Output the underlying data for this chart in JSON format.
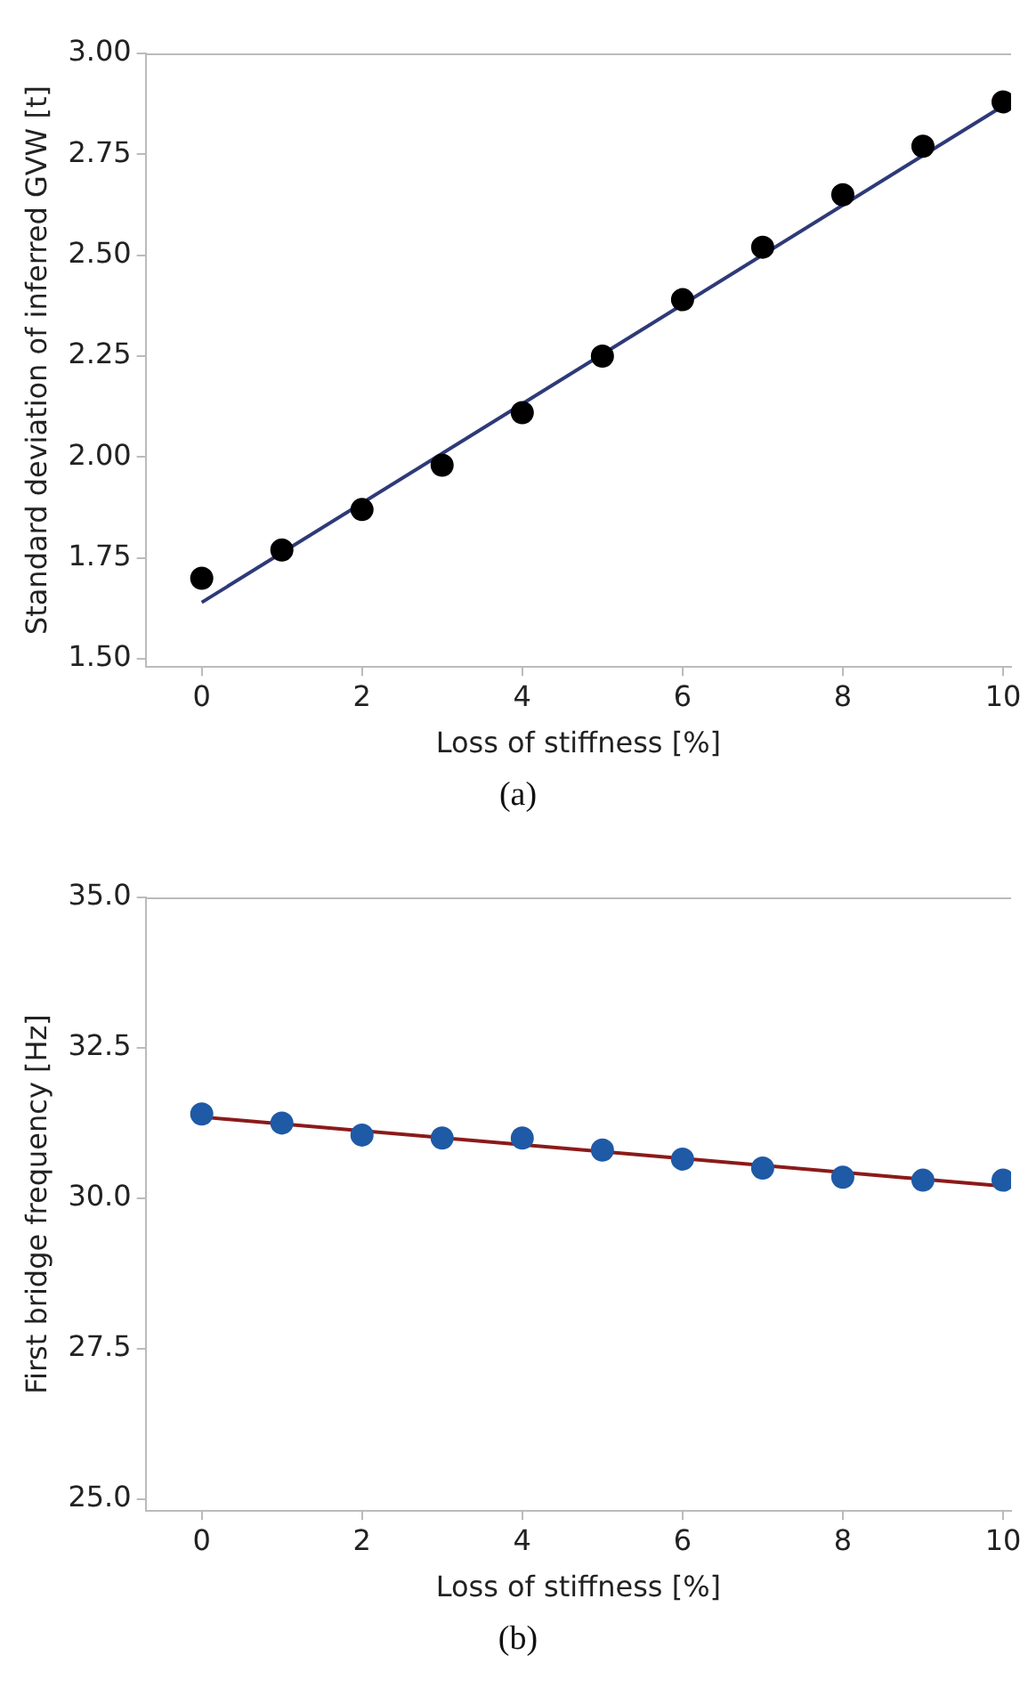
{
  "chart_data": [
    {
      "type": "scatter",
      "xlabel": "Loss of stiffness [%]",
      "ylabel": "Standard deviation of inferred GVW [t]",
      "annotations": [
        "(a)"
      ],
      "xlim": [
        -0.7,
        10.1
      ],
      "xticks": [
        0,
        2,
        4,
        6,
        8,
        10
      ],
      "ylim": [
        1.48,
        3.0
      ],
      "yticks": [
        {
          "value": 1.5,
          "label": "1.50"
        },
        {
          "value": 1.75,
          "label": "1.75"
        },
        {
          "value": 2.0,
          "label": "2.00"
        },
        {
          "value": 2.25,
          "label": "2.25"
        },
        {
          "value": 2.5,
          "label": "2.50"
        },
        {
          "value": 2.75,
          "label": "2.75"
        },
        {
          "value": 3.0,
          "label": "3.00"
        }
      ],
      "grid": false,
      "series": [
        {
          "type": "scatter",
          "marker": "circle",
          "color": "#000000",
          "x": [
            0,
            1,
            2,
            3,
            4,
            5,
            6,
            7,
            8,
            9,
            10
          ],
          "values": [
            1.7,
            1.77,
            1.87,
            1.98,
            2.11,
            2.25,
            2.39,
            2.52,
            2.65,
            2.77,
            2.88
          ]
        },
        {
          "type": "line",
          "marker": "none",
          "color": "#2e3a78",
          "x": [
            0,
            10
          ],
          "values": [
            1.64,
            2.87
          ]
        }
      ]
    },
    {
      "type": "scatter",
      "xlabel": "Loss of stiffness [%]",
      "ylabel": "First bridge frequency [Hz]",
      "annotations": [
        "(b)"
      ],
      "xlim": [
        -0.7,
        10.1
      ],
      "xticks": [
        0,
        2,
        4,
        6,
        8,
        10
      ],
      "ylim": [
        24.8,
        35.0
      ],
      "yticks": [
        {
          "value": 25,
          "label": "25.0"
        },
        {
          "value": 27.5,
          "label": "27.5"
        },
        {
          "value": 30,
          "label": "30.0"
        },
        {
          "value": 32.5,
          "label": "32.5"
        },
        {
          "value": 35,
          "label": "35.0"
        }
      ],
      "grid": false,
      "series": [
        {
          "type": "scatter",
          "marker": "circle",
          "color": "#1f5aa6",
          "x": [
            0,
            1,
            2,
            3,
            4,
            5,
            6,
            7,
            8,
            9,
            10
          ],
          "values": [
            31.4,
            31.25,
            31.05,
            31.0,
            31.0,
            30.8,
            30.65,
            30.5,
            30.35,
            30.3,
            30.3
          ]
        },
        {
          "type": "line",
          "marker": "none",
          "color": "#8b1a1a",
          "x": [
            0,
            10
          ],
          "values": [
            31.35,
            30.2
          ]
        }
      ]
    }
  ]
}
